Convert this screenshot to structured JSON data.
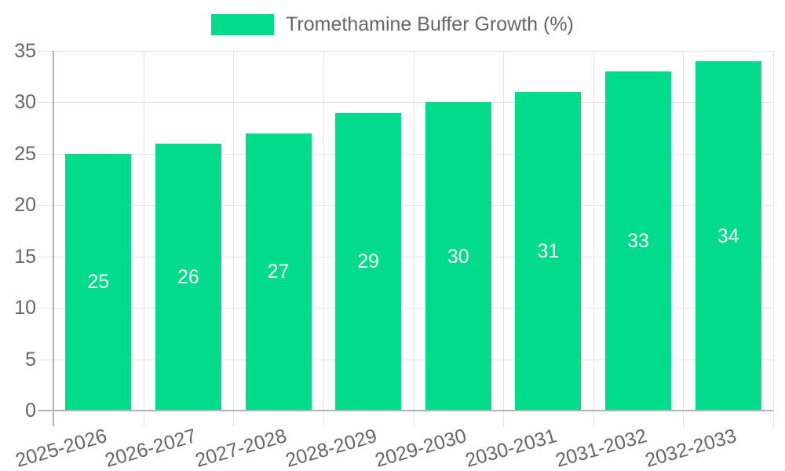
{
  "chart_data": {
    "type": "bar",
    "title": "",
    "legend": "Tromethamine Buffer Growth (%)",
    "legend_position": "top",
    "categories": [
      "2025-2026",
      "2026-2027",
      "2027-2028",
      "2028-2029",
      "2029-2030",
      "2030-2031",
      "2031-2032",
      "2032-2033"
    ],
    "values": [
      25,
      26,
      27,
      29,
      30,
      31,
      33,
      34
    ],
    "xlabel": "",
    "ylabel": "",
    "ylim": [
      0,
      35
    ],
    "ytick_step": 5,
    "yticks": [
      0,
      5,
      10,
      15,
      20,
      25,
      30,
      35
    ],
    "grid": true,
    "bar_value_labels_shown": true,
    "colors": {
      "bar": "#00DC8C",
      "grid": "#e3e3e3",
      "axis": "#b3b3b3",
      "text": "#666666",
      "value_label": "#ffffff",
      "background": "#ffffff"
    }
  }
}
